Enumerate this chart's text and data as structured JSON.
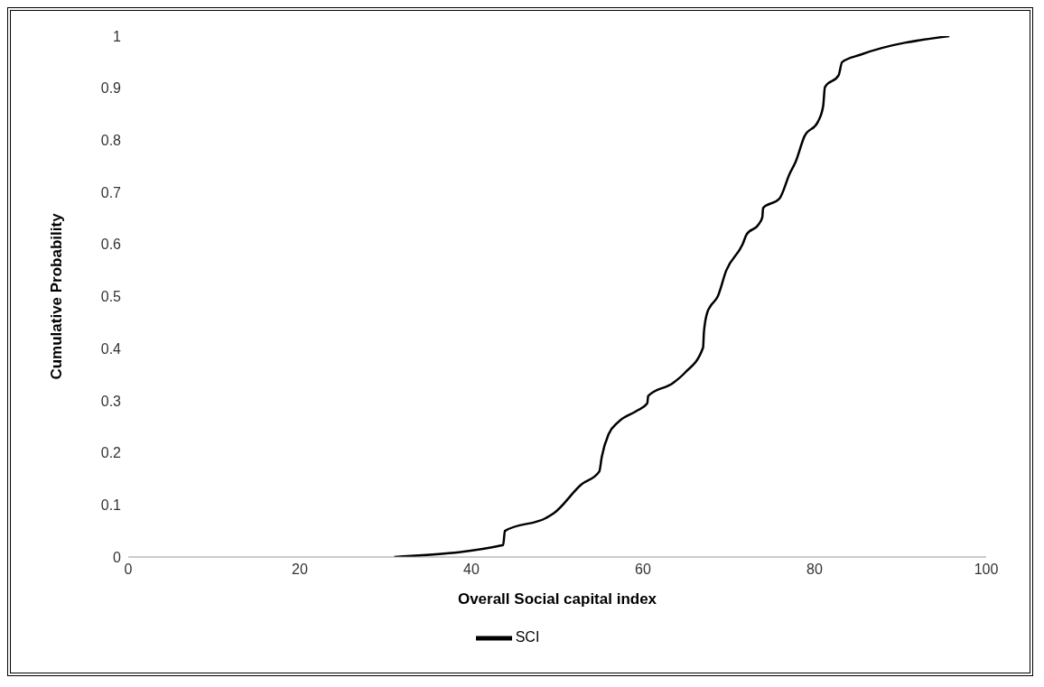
{
  "chart_data": {
    "type": "line",
    "xlabel": "Overall Social capital index",
    "ylabel": "Cumulative Probability",
    "x": [
      31.0,
      43.7,
      43.9,
      48.7,
      49.6,
      52.8,
      54.9,
      55.2,
      56.0,
      57.1,
      59.2,
      60.5,
      60.6,
      63.5,
      64.9,
      67.0,
      67.1,
      67.5,
      67.8,
      68.7,
      69.7,
      71.6,
      72.1,
      73.4,
      73.9,
      74.0,
      75.9,
      77.1,
      77.8,
      78.8,
      80.4,
      81.0,
      81.2,
      82.8,
      83.2,
      85.3,
      95.7
    ],
    "series": [
      {
        "name": "SCI",
        "color": "#000000",
        "values": [
          0,
          0.023,
          0.05,
          0.075,
          0.084,
          0.139,
          0.164,
          0.193,
          0.236,
          0.259,
          0.28,
          0.295,
          0.309,
          0.334,
          0.354,
          0.402,
          0.432,
          0.47,
          0.48,
          0.5,
          0.55,
          0.6,
          0.62,
          0.637,
          0.652,
          0.67,
          0.688,
          0.736,
          0.759,
          0.807,
          0.836,
          0.866,
          0.902,
          0.925,
          0.95,
          0.964,
          1.0
        ]
      }
    ],
    "xlim": [
      0,
      100
    ],
    "xticks": [
      0,
      20,
      40,
      60,
      80,
      100
    ],
    "ylim": [
      0,
      1
    ],
    "yticks": [
      0,
      0.1,
      0.2,
      0.3,
      0.4,
      0.5,
      0.6,
      0.7,
      0.8,
      0.9,
      1
    ],
    "grid": false,
    "legend": "bottom",
    "marker": "none",
    "line_style": "solid"
  }
}
